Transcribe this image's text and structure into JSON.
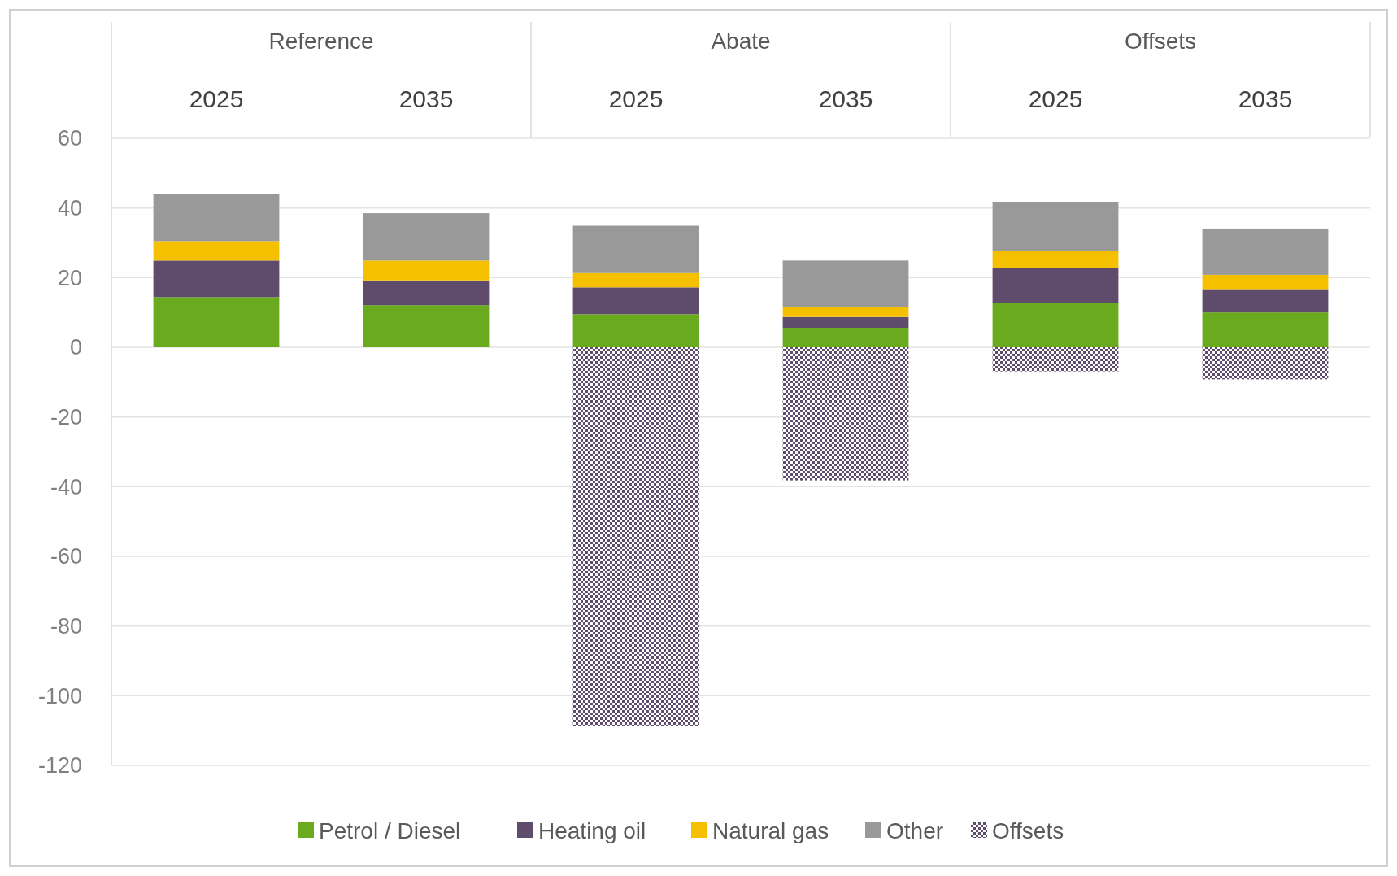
{
  "chart_data": {
    "type": "bar",
    "stacked": true,
    "categories": [
      "2025",
      "2035",
      "2025",
      "2035",
      "2025",
      "2035"
    ],
    "annotations": [
      "Reference",
      "Abate",
      "Offsets"
    ],
    "series": [
      {
        "name": "Petrol / Diesel",
        "color": "#6aaa1e",
        "values": [
          14.4,
          12.1,
          9.5,
          5.6,
          12.8,
          10
        ]
      },
      {
        "name": "Heating oil",
        "color": "#5f4b6b",
        "values": [
          10.5,
          7.1,
          7.7,
          3.1,
          10,
          6.7
        ]
      },
      {
        "name": "Natural gas",
        "color": "#f5c000",
        "values": [
          5.6,
          5.7,
          4.1,
          2.8,
          4.9,
          4.1
        ]
      },
      {
        "name": "Other",
        "color": "#999999",
        "values": [
          13.6,
          13.6,
          13.6,
          13.4,
          14.1,
          13.3
        ]
      },
      {
        "name": "Offsets",
        "color": "#5f4b6b",
        "values": [
          0,
          0,
          -108.7,
          -38.2,
          -6.9,
          -9.2
        ]
      }
    ],
    "ylim": [
      -120,
      60
    ],
    "yticks": [
      -120,
      -100,
      -80,
      -60,
      -40,
      -20,
      0,
      20,
      40,
      60
    ],
    "grid": "y",
    "legend": "bottom"
  }
}
